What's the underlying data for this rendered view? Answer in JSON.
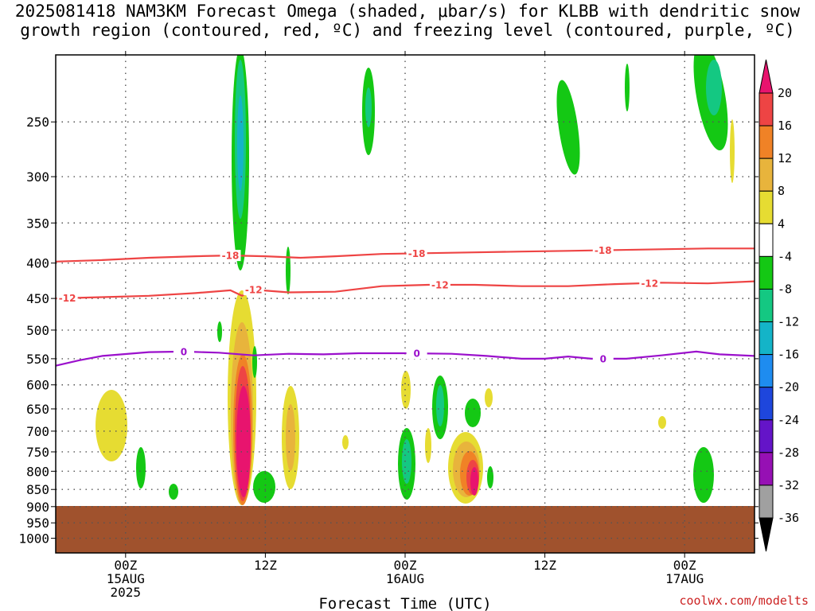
{
  "title_line1": "2025081418 NAM3KM Forecast Omega (shaded, μbar/s) for KLBB with dendritic snow",
  "title_line2": "growth region (contoured, red, ºC) and freezing level (contoured, purple, ºC)",
  "credit": "coolwx.com/modelts",
  "chart_data": {
    "type": "heatmap",
    "xlabel": "Forecast Time (UTC)",
    "ylabel": "",
    "x_start": "2025-08-14T18Z",
    "x_end": "2025-08-17T06Z",
    "x_ticks": [
      {
        "time": "2025-08-15T00Z",
        "lines": [
          "00Z",
          "15AUG",
          "2025"
        ]
      },
      {
        "time": "2025-08-15T12Z",
        "lines": [
          "12Z"
        ]
      },
      {
        "time": "2025-08-16T00Z",
        "lines": [
          "00Z",
          "16AUG"
        ]
      },
      {
        "time": "2025-08-16T12Z",
        "lines": [
          "12Z"
        ]
      },
      {
        "time": "2025-08-17T00Z",
        "lines": [
          "00Z",
          "17AUG"
        ]
      }
    ],
    "y_ticks": [
      250,
      300,
      350,
      400,
      450,
      500,
      550,
      600,
      650,
      700,
      750,
      800,
      850,
      900,
      950,
      1000
    ],
    "ylim": [
      1050,
      200
    ],
    "y_scale": "log-pressure",
    "grid": true,
    "ground_level_hpa": 900,
    "colorbar": {
      "labels": [
        20,
        16,
        12,
        8,
        4,
        -4,
        -8,
        -12,
        -16,
        -20,
        -24,
        -28,
        -32,
        -36
      ],
      "colors": [
        "#e8146e",
        "#ee4444",
        "#f08226",
        "#e8b43c",
        "#e6dc32",
        "#ffffff",
        "#14c814",
        "#14c882",
        "#14b4c8",
        "#1e8cf0",
        "#1e46dc",
        "#6414c8",
        "#9610b4",
        "#a0a0a0",
        "#000000"
      ]
    },
    "contours": [
      {
        "name": "-18",
        "color": "#ee4444",
        "label": "-18",
        "points": [
          [
            "2025-08-14T18Z",
            398
          ],
          [
            "2025-08-14T22Z",
            396
          ],
          [
            "2025-08-15T02Z",
            393
          ],
          [
            "2025-08-15T06Z",
            391
          ],
          [
            "2025-08-15T09Z",
            390
          ],
          [
            "2025-08-15T12Z",
            391
          ],
          [
            "2025-08-15T15Z",
            393
          ],
          [
            "2025-08-15T18Z",
            391
          ],
          [
            "2025-08-15T22Z",
            388
          ],
          [
            "2025-08-16T02Z",
            387
          ],
          [
            "2025-08-16T06Z",
            386
          ],
          [
            "2025-08-16T10Z",
            385
          ],
          [
            "2025-08-16T14Z",
            384
          ],
          [
            "2025-08-16T18Z",
            383
          ],
          [
            "2025-08-16T22Z",
            382
          ],
          [
            "2025-08-17T02Z",
            381
          ],
          [
            "2025-08-17T06Z",
            381
          ]
        ],
        "label_times": [
          "2025-08-15T09Z",
          "2025-08-16T01Z",
          "2025-08-16T17Z"
        ]
      },
      {
        "name": "-12",
        "color": "#ee4444",
        "label": "-12",
        "points": [
          [
            "2025-08-14T18Z",
            450
          ],
          [
            "2025-08-14T22Z",
            448
          ],
          [
            "2025-08-15T02Z",
            446
          ],
          [
            "2025-08-15T06Z",
            442
          ],
          [
            "2025-08-15T09Z",
            438
          ],
          [
            "2025-08-15T10Z",
            446
          ],
          [
            "2025-08-15T11Z",
            437
          ],
          [
            "2025-08-15T14Z",
            441
          ],
          [
            "2025-08-15T18Z",
            440
          ],
          [
            "2025-08-15T22Z",
            432
          ],
          [
            "2025-08-16T02Z",
            430
          ],
          [
            "2025-08-16T06Z",
            430
          ],
          [
            "2025-08-16T10Z",
            432
          ],
          [
            "2025-08-16T14Z",
            432
          ],
          [
            "2025-08-16T18Z",
            429
          ],
          [
            "2025-08-16T22Z",
            427
          ],
          [
            "2025-08-17T02Z",
            428
          ],
          [
            "2025-08-17T06Z",
            425
          ]
        ],
        "label_times": [
          "2025-08-14T19Z",
          "2025-08-15T11Z",
          "2025-08-16T03Z",
          "2025-08-16T21Z"
        ]
      },
      {
        "name": "0",
        "color": "#9b10cc",
        "label": "0",
        "points": [
          [
            "2025-08-14T18Z",
            563
          ],
          [
            "2025-08-14T20Z",
            553
          ],
          [
            "2025-08-14T22Z",
            545
          ],
          [
            "2025-08-15T02Z",
            538
          ],
          [
            "2025-08-15T05Z",
            537
          ],
          [
            "2025-08-15T08Z",
            539
          ],
          [
            "2025-08-15T11Z",
            544
          ],
          [
            "2025-08-15T14Z",
            541
          ],
          [
            "2025-08-15T17Z",
            542
          ],
          [
            "2025-08-15T20Z",
            540
          ],
          [
            "2025-08-16T00Z",
            540
          ],
          [
            "2025-08-16T04Z",
            541
          ],
          [
            "2025-08-16T07Z",
            545
          ],
          [
            "2025-08-16T10Z",
            550
          ],
          [
            "2025-08-16T12Z",
            550
          ],
          [
            "2025-08-16T14Z",
            546
          ],
          [
            "2025-08-16T16Z",
            550
          ],
          [
            "2025-08-16T19Z",
            550
          ],
          [
            "2025-08-16T22Z",
            544
          ],
          [
            "2025-08-17T01Z",
            537
          ],
          [
            "2025-08-17T03Z",
            542
          ],
          [
            "2025-08-17T06Z",
            545
          ]
        ],
        "label_times": [
          "2025-08-15T05Z",
          "2025-08-16T01Z",
          "2025-08-16T17Z"
        ]
      }
    ],
    "shaded_features": [
      {
        "level": -8,
        "t_center": "2025-08-15T10:30Z",
        "p_top": 200,
        "p_bottom": 410
      },
      {
        "level": -12,
        "t_center": "2025-08-15T10:30Z",
        "p_top": 210,
        "p_bottom": 360
      },
      {
        "level": -16,
        "t_center": "2025-08-15T10:30Z",
        "p_top": 240,
        "p_bottom": 320
      },
      {
        "level": 4,
        "t_center": "2025-08-15T10:30Z",
        "p_top": 440,
        "p_bottom": 900
      },
      {
        "level": 8,
        "t_center": "2025-08-15T10:30Z",
        "p_top": 470,
        "p_bottom": 890
      },
      {
        "level": 12,
        "t_center": "2025-08-15T10:30Z",
        "p_top": 520,
        "p_bottom": 870
      },
      {
        "level": 20,
        "t_center": "2025-08-15T10:30Z",
        "p_top": 560,
        "p_bottom": 860
      },
      {
        "level": 4,
        "t_center": "2025-08-14T23Z",
        "p_top": 620,
        "p_bottom": 780
      },
      {
        "level": 4,
        "t_center": "2025-08-15T14Z",
        "p_top": 620,
        "p_bottom": 850
      },
      {
        "level": 8,
        "t_center": "2025-08-15T14Z",
        "p_top": 650,
        "p_bottom": 800
      },
      {
        "level": -8,
        "t_center": "2025-08-15T13Z",
        "p_top": 800,
        "p_bottom": 890
      },
      {
        "level": -8,
        "t_center": "2025-08-15T21:30Z",
        "p_top": 215,
        "p_bottom": 290
      },
      {
        "level": -12,
        "t_center": "2025-08-15T21:30Z",
        "p_top": 230,
        "p_bottom": 265
      },
      {
        "level": -8,
        "t_center": "2025-08-16T00Z",
        "p_top": 700,
        "p_bottom": 870
      },
      {
        "level": -12,
        "t_center": "2025-08-16T00Z",
        "p_top": 740,
        "p_bottom": 830
      },
      {
        "level": -8,
        "t_center": "2025-08-16T03Z",
        "p_top": 610,
        "p_bottom": 720
      },
      {
        "level": 4,
        "t_center": "2025-08-16T05:30Z",
        "p_top": 700,
        "p_bottom": 880
      },
      {
        "level": 8,
        "t_center": "2025-08-16T05:30Z",
        "p_top": 720,
        "p_bottom": 860
      },
      {
        "level": 12,
        "t_center": "2025-08-16T05:45Z",
        "p_top": 750,
        "p_bottom": 860
      },
      {
        "level": 20,
        "t_center": "2025-08-16T06Z",
        "p_top": 790,
        "p_bottom": 860
      },
      {
        "level": -8,
        "t_center": "2025-08-16T14Z",
        "p_top": 225,
        "p_bottom": 310
      },
      {
        "level": -8,
        "t_center": "2025-08-17T01:30Z",
        "p_top": 200,
        "p_bottom": 280
      },
      {
        "level": -12,
        "t_center": "2025-08-17T02Z",
        "p_top": 210,
        "p_bottom": 255
      },
      {
        "level": -8,
        "t_center": "2025-08-17T00:30Z",
        "p_top": 750,
        "p_bottom": 870
      }
    ]
  }
}
